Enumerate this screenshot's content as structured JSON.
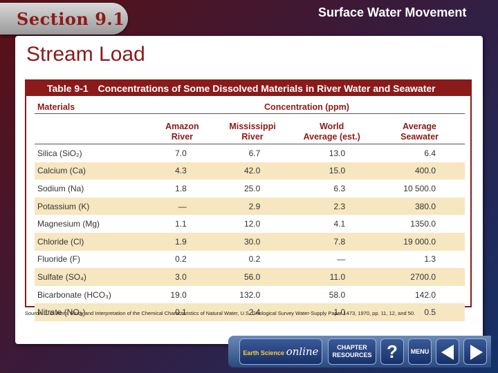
{
  "header": {
    "section_label": "Section 9.1",
    "topic_title": "Surface Water Movement"
  },
  "slide": {
    "title": "Stream Load"
  },
  "table": {
    "number": "Table 9-1",
    "caption": "Concentrations of Some Dissolved Materials in River Water and Seawater",
    "col_materials": "Materials",
    "col_group": "Concentration (ppm)",
    "columns": [
      {
        "line1": "Amazon",
        "line2": "River"
      },
      {
        "line1": "Mississippi",
        "line2": "River"
      },
      {
        "line1": "World",
        "line2": "Average (est.)"
      },
      {
        "line1": "Average",
        "line2": "Seawater"
      }
    ],
    "rows": [
      {
        "material": "Silica (SiO₂)",
        "values": [
          "7.0",
          "6.7",
          "13.0",
          "6.4"
        ]
      },
      {
        "material": "Calcium (Ca)",
        "values": [
          "4.3",
          "42.0",
          "15.0",
          "400.0"
        ]
      },
      {
        "material": "Sodium (Na)",
        "values": [
          "1.8",
          "25.0",
          "6.3",
          "10 500.0"
        ]
      },
      {
        "material": "Potassium (K)",
        "values": [
          "—",
          "2.9",
          "2.3",
          "380.0"
        ]
      },
      {
        "material": "Magnesium (Mg)",
        "values": [
          "1.1",
          "12.0",
          "4.1",
          "1350.0"
        ]
      },
      {
        "material": "Chloride (Cl)",
        "values": [
          "1.9",
          "30.0",
          "7.8",
          "19 000.0"
        ]
      },
      {
        "material": "Fluoride (F)",
        "values": [
          "0.2",
          "0.2",
          "—",
          "1.3"
        ]
      },
      {
        "material": "Sulfate (SO₄)",
        "values": [
          "3.0",
          "56.0",
          "11.0",
          "2700.0"
        ]
      },
      {
        "material": "Bicarbonate (HCO₃)",
        "values": [
          "19.0",
          "132.0",
          "58.0",
          "142.0"
        ]
      },
      {
        "material": "Nitrate (NO₃)",
        "values": [
          "0.1",
          "2.4",
          "1.0",
          "0.5"
        ]
      }
    ],
    "source": "Source: J. D. Hem, Study and Interpretation of the Chemical Characteristics of Natural Water, U.S. Geological Survey Water-Supply Paper 1473, 1970, pp. 11, 12, and 50."
  },
  "nav": {
    "earth_science": "Earth Science",
    "online": "online",
    "chapter_line1": "CHAPTER",
    "chapter_line2": "RESOURCES",
    "help": "?",
    "menu": "MENU",
    "prev_icon": "left-triangle-icon",
    "next_icon": "right-triangle-icon"
  },
  "colors": {
    "accent": "#8b1a1a",
    "row_shade": "#f6e7c1"
  }
}
